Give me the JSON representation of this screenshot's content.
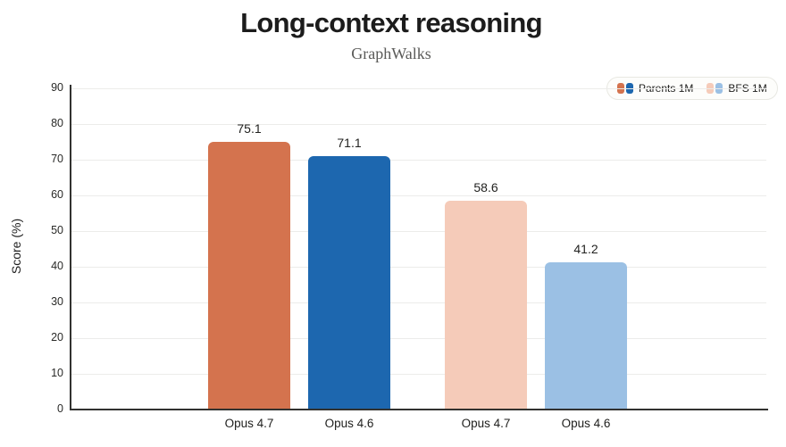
{
  "header": {
    "title": "Long-context reasoning",
    "subtitle": "GraphWalks"
  },
  "chart_data": {
    "type": "bar",
    "title": "Long-context reasoning",
    "subtitle": "GraphWalks",
    "xlabel": "",
    "ylabel": "Score (%)",
    "ylim": [
      0,
      90
    ],
    "ytick_step": 10,
    "grid": true,
    "legend_position": "top-right",
    "categories": [
      "Opus 4.7",
      "Opus 4.6",
      "Opus 4.7",
      "Opus 4.6"
    ],
    "bars": [
      {
        "category": "Opus 4.7",
        "series": "Parents 1M",
        "value": 75.1,
        "color": "#d4734e"
      },
      {
        "category": "Opus 4.6",
        "series": "Parents 1M",
        "value": 71.1,
        "color": "#1d67af"
      },
      {
        "category": "Opus 4.7",
        "series": "BFS 1M",
        "value": 58.6,
        "color": "#f5cbb9"
      },
      {
        "category": "Opus 4.6",
        "series": "BFS 1M",
        "value": 41.2,
        "color": "#9bc0e4"
      }
    ],
    "legend": [
      {
        "label": "Parents 1M",
        "colors": [
          "#d4734e",
          "#1d67af"
        ]
      },
      {
        "label": "BFS 1M",
        "colors": [
          "#f5cbb9",
          "#9bc0e4"
        ]
      }
    ],
    "style": {
      "axis_color": "#323230",
      "grid_color": "#ececea",
      "text_color": "#1f1f1f",
      "subtitle_color": "#5a5a58",
      "background": "#ffffff"
    }
  }
}
